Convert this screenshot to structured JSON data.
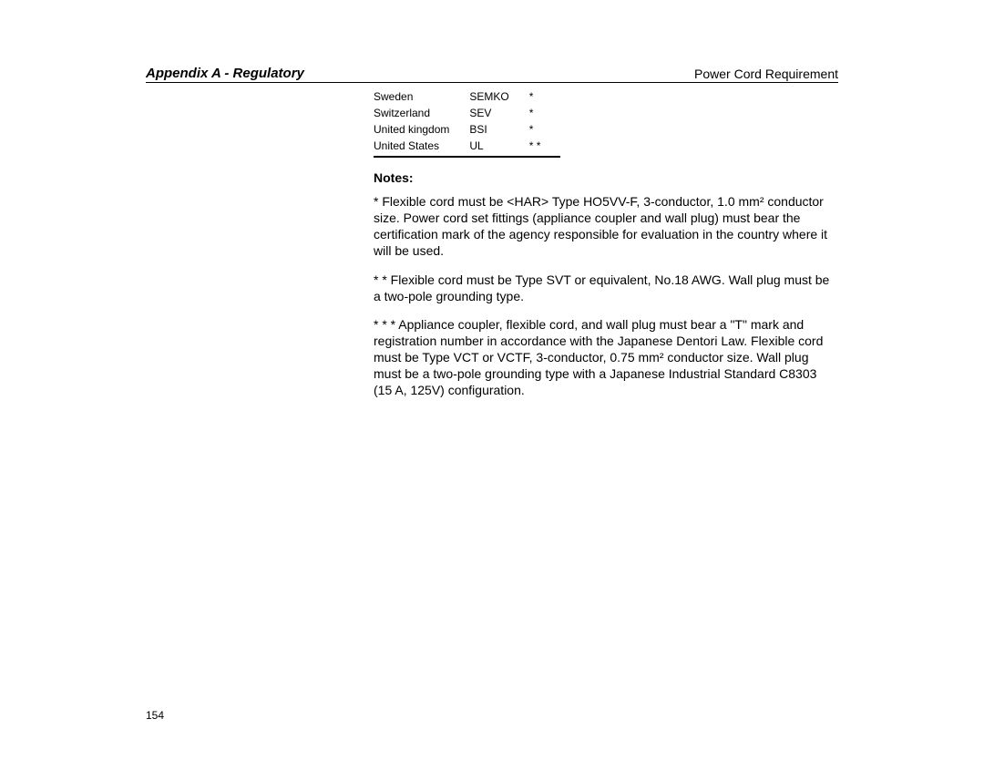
{
  "header": {
    "left": "Appendix A - Regulatory",
    "right": "Power Cord Requirement"
  },
  "table": {
    "rows": [
      {
        "country": "Sweden",
        "agency": "SEMKO",
        "mark": "*"
      },
      {
        "country": "Switzerland",
        "agency": "SEV",
        "mark": "*"
      },
      {
        "country": "United kingdom",
        "agency": "BSI",
        "mark": "*"
      },
      {
        "country": "United States",
        "agency": "UL",
        "mark": "* *"
      }
    ]
  },
  "notes": {
    "heading": "Notes:",
    "paragraphs": [
      "* Flexible cord must be <HAR> Type HO5VV-F, 3-conductor, 1.0 mm² conductor size. Power cord set fittings (appliance coupler and wall plug) must bear the certification mark of the agency responsible for evaluation in the country where it will be used.",
      "* * Flexible cord must be Type SVT or equivalent, No.18 AWG. Wall plug must be a two-pole grounding type.",
      "* * * Appliance coupler, flexible cord, and wall plug must bear a \"T\" mark and registration number in accordance with the Japanese Dentori Law. Flexible cord must be Type VCT or VCTF, 3-conductor, 0.75 mm² conductor size. Wall plug must be a two-pole grounding type with a Japanese Industrial Standard C8303 (15 A, 125V) configuration."
    ]
  },
  "pageNumber": "154"
}
